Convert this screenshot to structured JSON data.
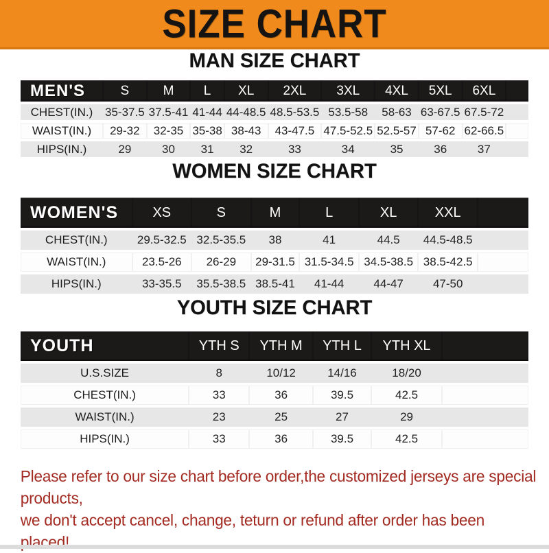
{
  "banner": {
    "title": "SIZE CHART",
    "bg_color": "#F08A1D",
    "text_color": "#161412"
  },
  "sections": {
    "men": {
      "heading": "MAN SIZE CHART",
      "table": {
        "header_label": "MEN'S",
        "columns": [
          "S",
          "M",
          "L",
          "XL",
          "2XL",
          "3XL",
          "4XL",
          "5XL",
          "6XL"
        ],
        "rows": [
          {
            "label": "CHEST(IN.)",
            "values": [
              "35-37.5",
              "37.5-41",
              "41-44",
              "44-48.5",
              "48.5-53.5",
              "53.5-58",
              "58-63",
              "63-67.5",
              "67.5-72"
            ]
          },
          {
            "label": "WAIST(IN.)",
            "values": [
              "29-32",
              "32-35",
              "35-38",
              "38-43",
              "43-47.5",
              "47.5-52.5",
              "52.5-57",
              "57-62",
              "62-66.5"
            ]
          },
          {
            "label": "HIPS(IN.)",
            "values": [
              "29",
              "30",
              "31",
              "32",
              "33",
              "34",
              "35",
              "36",
              "37"
            ]
          }
        ]
      }
    },
    "women": {
      "heading": "WOMEN SIZE CHART",
      "table": {
        "header_label": "WOMEN'S",
        "columns": [
          "XS",
          "S",
          "M",
          "L",
          "XL",
          "XXL"
        ],
        "rows": [
          {
            "label": "CHEST(IN.)",
            "values": [
              "29.5-32.5",
              "32.5-35.5",
              "38",
              "41",
              "44.5",
              "44.5-48.5"
            ]
          },
          {
            "label": "WAIST(IN.)",
            "values": [
              "23.5-26",
              "26-29",
              "29-31.5",
              "31.5-34.5",
              "34.5-38.5",
              "38.5-42.5"
            ]
          },
          {
            "label": "HIPS(IN.)",
            "values": [
              "33-35.5",
              "35.5-38.5",
              "38.5-41",
              "41-44",
              "44-47",
              "47-50"
            ]
          }
        ]
      }
    },
    "youth": {
      "heading": "YOUTH SIZE CHART",
      "table": {
        "header_label": "YOUTH",
        "columns": [
          "YTH S",
          "YTH M",
          "YTH L",
          "YTH XL"
        ],
        "rows": [
          {
            "label": "U.S.SIZE",
            "values": [
              "8",
              "10/12",
              "14/16",
              "18/20"
            ]
          },
          {
            "label": "CHEST(IN.)",
            "values": [
              "33",
              "36",
              "39.5",
              "42.5"
            ]
          },
          {
            "label": "WAIST(IN.)",
            "values": [
              "23",
              "25",
              "27",
              "29"
            ]
          },
          {
            "label": "HIPS(IN.)",
            "values": [
              "33",
              "36",
              "39.5",
              "42.5"
            ]
          }
        ]
      }
    }
  },
  "footer": {
    "line1": "Please refer to our size chart before order,the customized jerseys are special products,",
    "line2": "we don't accept cancel, change, teturn or refund after order has been placed!",
    "text_color": "#A32B22"
  },
  "colors": {
    "table_header_bg": "#1C1A19",
    "row_alt_bg": "#E7E7E7",
    "row_bg": "#FDFDFD"
  }
}
